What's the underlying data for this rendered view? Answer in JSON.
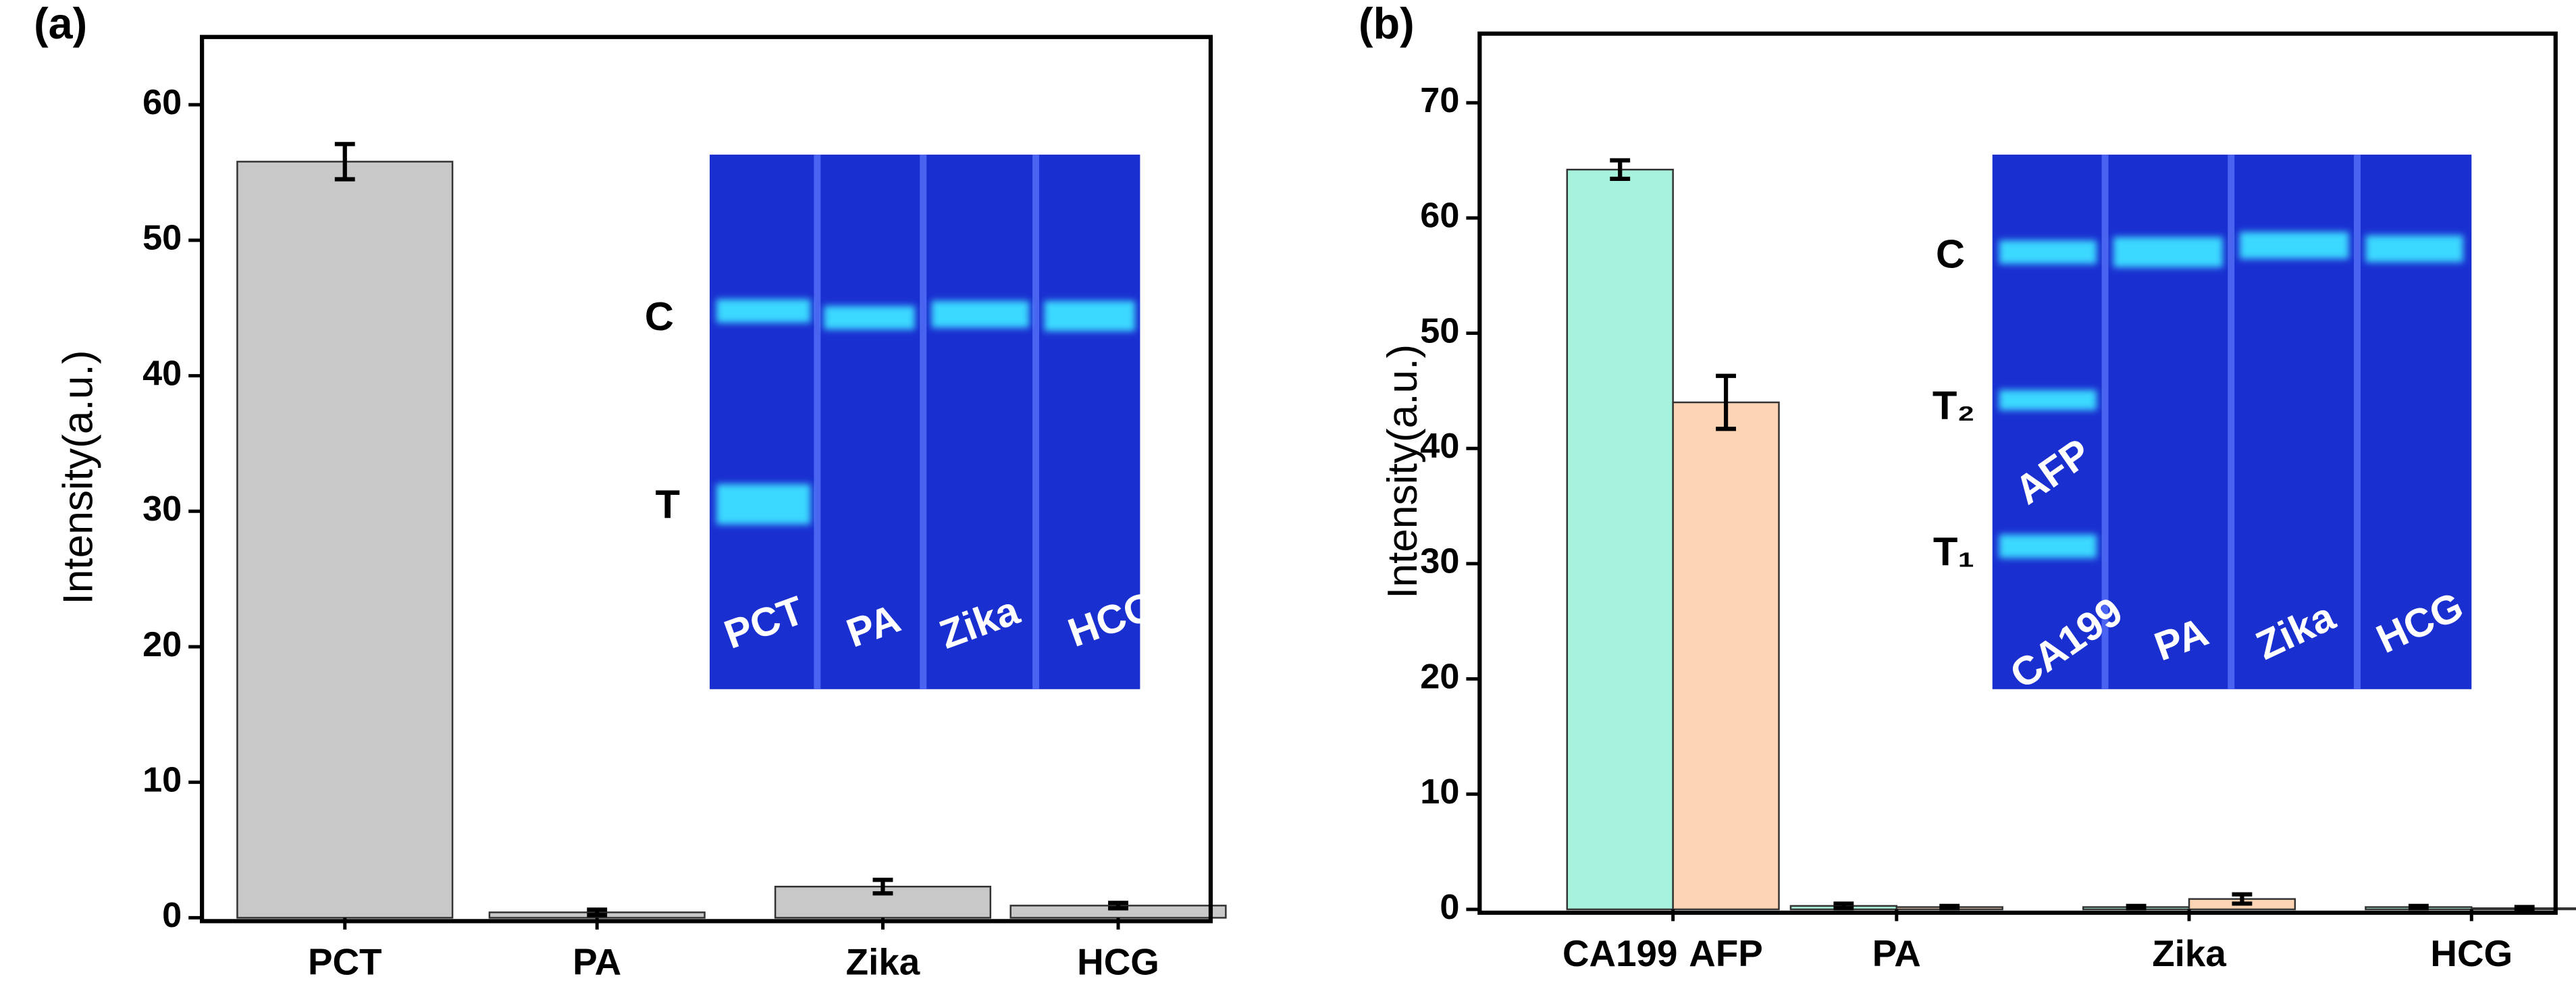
{
  "chart_data": [
    {
      "type": "bar",
      "panel_label": "(a)",
      "ylabel": "Intensity(a.u.)",
      "categories": [
        "PCT",
        "PA",
        "Zika",
        "HCG"
      ],
      "series": [
        {
          "color": "#c8c8c8",
          "values": [
            55.8,
            0.4,
            2.3,
            0.9
          ],
          "errors": [
            1.3,
            0.2,
            0.5,
            0.2
          ]
        }
      ],
      "ylim": [
        0,
        65
      ],
      "yticks": [
        0,
        10,
        20,
        30,
        40,
        50,
        60
      ],
      "inset_labels": [
        "C",
        "T",
        "PCT",
        "PA",
        "Zika",
        "HCG"
      ]
    },
    {
      "type": "bar",
      "panel_label": "(b)",
      "ylabel": "Intensity(a.u.)",
      "categories": [
        null,
        "PA",
        "Zika",
        "HCG"
      ],
      "series": [
        {
          "name": "CA199",
          "color": "#a6f2dc",
          "values": [
            64.2,
            0.3,
            0.2,
            0.2
          ],
          "errors": [
            0.8,
            0.2,
            0.1,
            0.1
          ]
        },
        {
          "name": "AFP",
          "color": "#fcd4b4",
          "values": [
            44,
            0.2,
            0.9,
            0.1
          ],
          "errors": [
            2.3,
            0.1,
            0.4,
            0.1
          ]
        }
      ],
      "ylim": [
        0,
        76
      ],
      "yticks": [
        0,
        10,
        20,
        30,
        40,
        50,
        60,
        70
      ],
      "inset_labels": [
        "C",
        "T₂",
        "T₁",
        "AFP",
        "CA199",
        "PA",
        "Zika",
        "HCG"
      ]
    }
  ]
}
